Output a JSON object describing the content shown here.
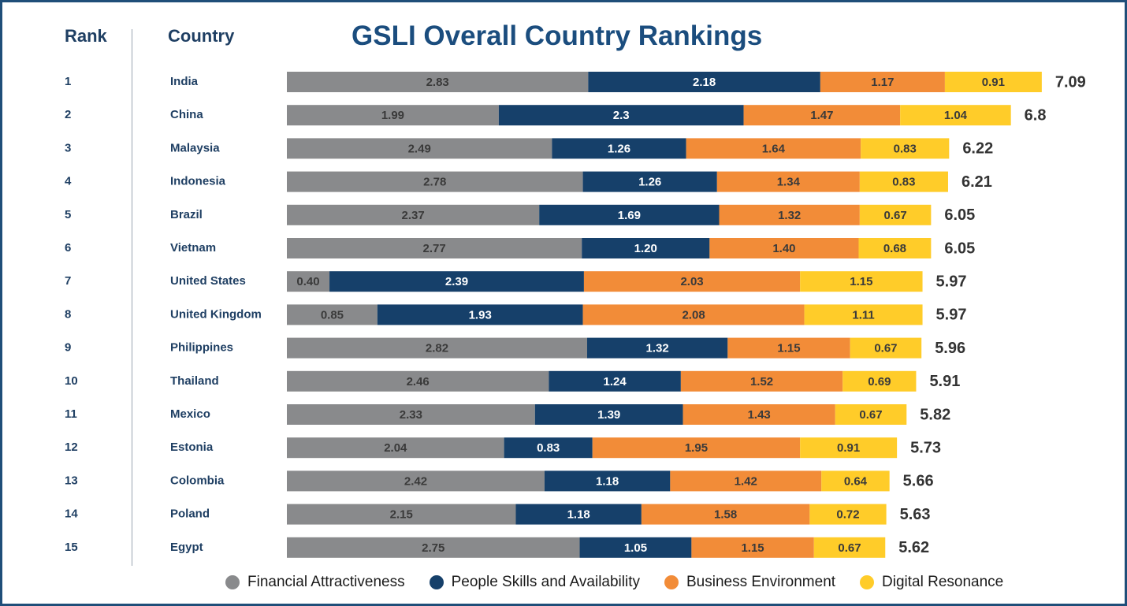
{
  "header": {
    "rank_label": "Rank",
    "country_label": "Country"
  },
  "chart_data": {
    "type": "bar",
    "orientation": "horizontal",
    "stacked": true,
    "title": "GSLI Overall Country Rankings",
    "ranks": [
      "1",
      "2",
      "3",
      "4",
      "5",
      "6",
      "7",
      "8",
      "9",
      "10",
      "11",
      "12",
      "13",
      "14",
      "15"
    ],
    "categories": [
      "India",
      "China",
      "Malaysia",
      "Indonesia",
      "Brazil",
      "Vietnam",
      "United States",
      "United Kingdom",
      "Philippines",
      "Thailand",
      "Mexico",
      "Estonia",
      "Colombia",
      "Poland",
      "Egypt"
    ],
    "series": [
      {
        "name": "Financial Attractiveness",
        "color": "#898a8c",
        "label_color": "#3a3a3a",
        "values": [
          2.83,
          1.99,
          2.49,
          2.78,
          2.37,
          2.77,
          0.4,
          0.85,
          2.82,
          2.46,
          2.33,
          2.04,
          2.42,
          2.15,
          2.75
        ],
        "labels": [
          "2.83",
          "1.99",
          "2.49",
          "2.78",
          "2.37",
          "2.77",
          "0.40",
          "0.85",
          "2.82",
          "2.46",
          "2.33",
          "2.04",
          "2.42",
          "2.15",
          "2.75"
        ]
      },
      {
        "name": "People Skills and Availability",
        "color": "#16406a",
        "label_color": "#ffffff",
        "values": [
          2.18,
          2.3,
          1.26,
          1.26,
          1.69,
          1.2,
          2.39,
          1.93,
          1.32,
          1.24,
          1.39,
          0.83,
          1.18,
          1.18,
          1.05
        ],
        "labels": [
          "2.18",
          "2.3",
          "1.26",
          "1.26",
          "1.69",
          "1.20",
          "2.39",
          "1.93",
          "1.32",
          "1.24",
          "1.39",
          "0.83",
          "1.18",
          "1.18",
          "1.05"
        ]
      },
      {
        "name": "Business Environment",
        "color": "#f28c38",
        "label_color": "#3a3a3a",
        "values": [
          1.17,
          1.47,
          1.64,
          1.34,
          1.32,
          1.4,
          2.03,
          2.08,
          1.15,
          1.52,
          1.43,
          1.95,
          1.42,
          1.58,
          1.15
        ],
        "labels": [
          "1.17",
          "1.47",
          "1.64",
          "1.34",
          "1.32",
          "1.40",
          "2.03",
          "2.08",
          "1.15",
          "1.52",
          "1.43",
          "1.95",
          "1.42",
          "1.58",
          "1.15"
        ]
      },
      {
        "name": "Digital Resonance",
        "color": "#ffcc29",
        "label_color": "#3a3a3a",
        "values": [
          0.91,
          1.04,
          0.83,
          0.83,
          0.67,
          0.68,
          1.15,
          1.11,
          0.67,
          0.69,
          0.67,
          0.91,
          0.64,
          0.72,
          0.67
        ],
        "labels": [
          "0.91",
          "1.04",
          "0.83",
          "0.83",
          "0.67",
          "0.68",
          "1.15",
          "1.11",
          "0.67",
          "0.69",
          "0.67",
          "0.91",
          "0.64",
          "0.72",
          "0.67"
        ]
      }
    ],
    "totals": [
      "7.09",
      "6.8",
      "6.22",
      "6.21",
      "6.05",
      "6.05",
      "5.97",
      "5.97",
      "5.96",
      "5.91",
      "5.82",
      "5.73",
      "5.66",
      "5.63",
      "5.62"
    ],
    "legend_position": "bottom",
    "grid": false
  }
}
